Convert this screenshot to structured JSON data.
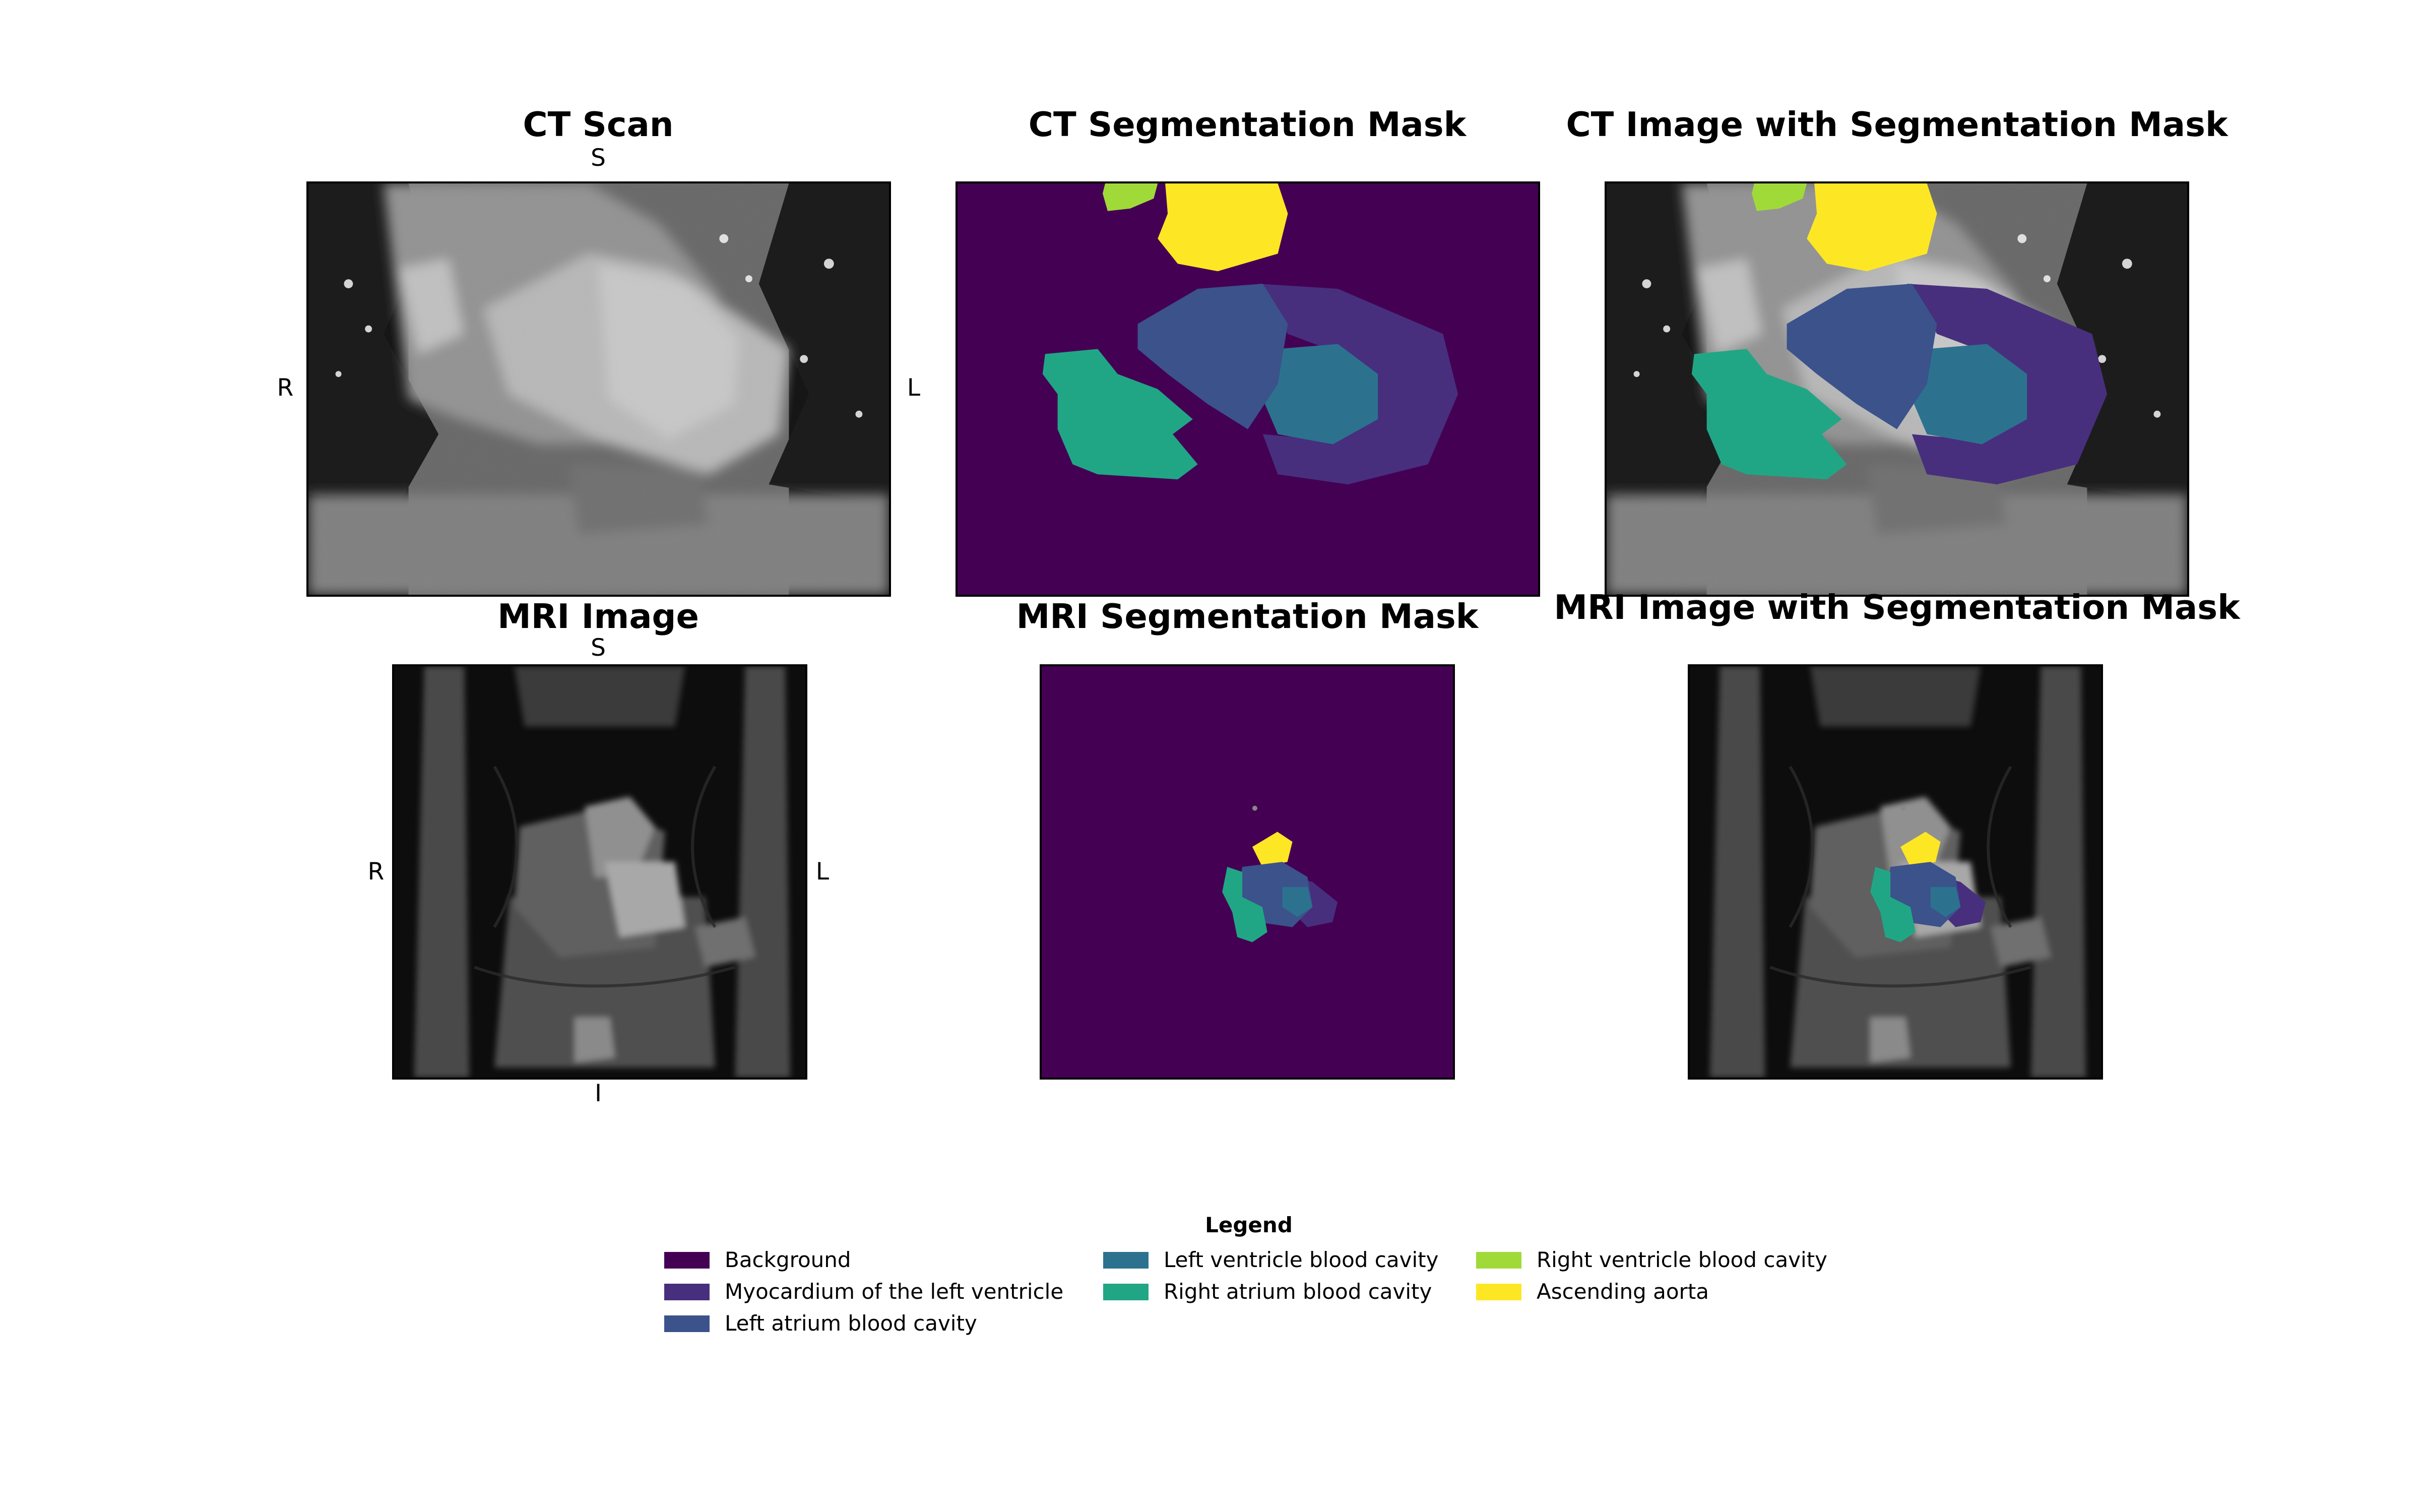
{
  "panels": {
    "ct_scan": {
      "title": "CT Scan"
    },
    "ct_mask": {
      "title": "CT Segmentation Mask"
    },
    "ct_overlay": {
      "title": "CT Image with Segmentation Mask"
    },
    "mri_image": {
      "title": "MRI Image"
    },
    "mri_mask": {
      "title": "MRI Segmentation Mask"
    },
    "mri_overlay": {
      "title": "MRI Image with Segmentation Mask"
    }
  },
  "orientation": {
    "ct": {
      "top": "S",
      "left": "R",
      "right": "L"
    },
    "mri": {
      "top": "S",
      "left": "R",
      "right": "L",
      "bottom": "I"
    }
  },
  "legend": {
    "title": "Legend",
    "items": [
      {
        "label": "Background",
        "color": "#440154"
      },
      {
        "label": "Myocardium of the left ventricle",
        "color": "#472F7D"
      },
      {
        "label": "Left atrium blood cavity",
        "color": "#3B528B"
      },
      {
        "label": "Left ventricle blood cavity",
        "color": "#2C728E"
      },
      {
        "label": "Right atrium blood cavity",
        "color": "#21A685"
      },
      {
        "label": "Right ventricle blood cavity",
        "color": "#A0DA39"
      },
      {
        "label": "Ascending aorta",
        "color": "#FDE725"
      }
    ]
  }
}
